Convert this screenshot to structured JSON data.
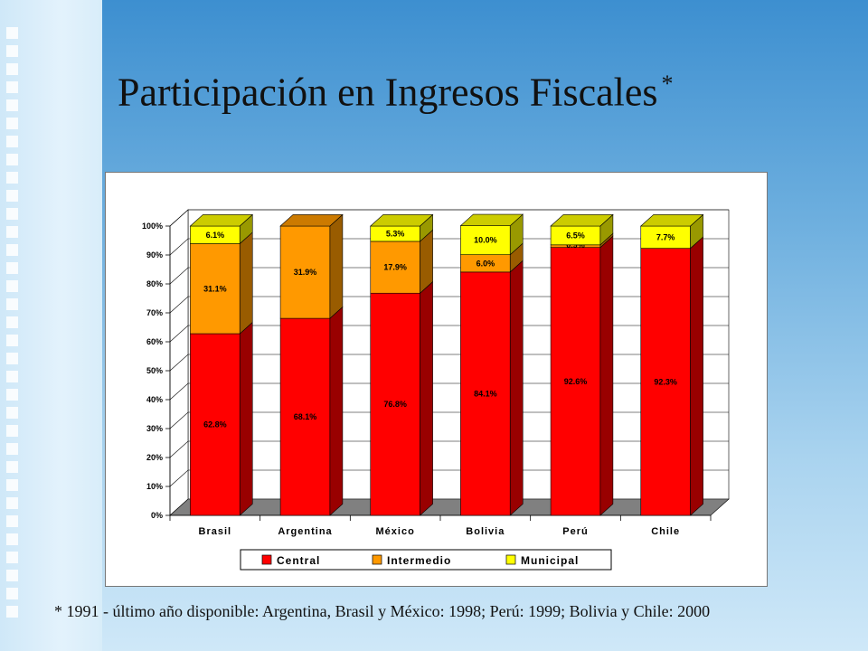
{
  "slide": {
    "title": "Participación en Ingresos Fiscales",
    "title_marker": "*",
    "footnote": "* 1991 - último año disponible: Argentina, Brasil y México: 1998; Perú: 1999; Bolivia y Chile: 2000"
  },
  "colors": {
    "central": "#ff0000",
    "intermedio": "#ff9900",
    "municipal": "#ffff00",
    "floor": "#808080",
    "wall": "#ffffff",
    "background_top": "#3d8fd0",
    "background_bottom": "#cfe8f8"
  },
  "chart_data": {
    "type": "bar",
    "stacked": true,
    "three_d": true,
    "title": "",
    "xlabel": "",
    "ylabel": "",
    "ylim": [
      0,
      100
    ],
    "y_ticks": [
      "0%",
      "10%",
      "20%",
      "30%",
      "40%",
      "50%",
      "60%",
      "70%",
      "80%",
      "90%",
      "100%"
    ],
    "grid": true,
    "legend_position": "bottom",
    "categories": [
      "Brasil",
      "Argentina",
      "México",
      "Bolivia",
      "Perú",
      "Chile"
    ],
    "series": [
      {
        "name": "Central",
        "values": [
          62.8,
          68.1,
          76.8,
          84.1,
          92.6,
          92.3
        ],
        "labels": [
          "62.8%",
          "68.1%",
          "76.8%",
          "84.1%",
          "92.6%",
          "92.3%"
        ]
      },
      {
        "name": "Intermedio",
        "values": [
          31.1,
          31.9,
          17.9,
          6.0,
          0.9,
          0
        ],
        "labels": [
          "31.1%",
          "31.9%",
          "17.9%",
          "6.0%",
          "0.9%",
          ""
        ]
      },
      {
        "name": "Municipal",
        "values": [
          6.1,
          0,
          5.3,
          10.0,
          6.5,
          7.7
        ],
        "labels": [
          "6.1%",
          "",
          "5.3%",
          "10.0%",
          "6.5%",
          "7.7%"
        ]
      }
    ]
  }
}
